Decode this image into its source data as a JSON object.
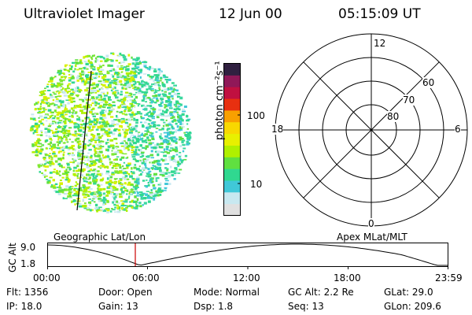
{
  "header": {
    "title": "Ultraviolet Imager",
    "date": "12 Jun 00",
    "time": "05:15:09 UT"
  },
  "colorbar": {
    "label": "photon cm⁻²s⁻¹",
    "ticks": [
      "100",
      "10"
    ],
    "colors": [
      "#e0e0e0",
      "#c8e8f0",
      "#40c8d8",
      "#30d890",
      "#60e040",
      "#b0f000",
      "#e8f000",
      "#f8d800",
      "#f8a000",
      "#e83010",
      "#c01040",
      "#901858",
      "#302040"
    ]
  },
  "polar": {
    "mlt_labels": {
      "top": "12",
      "bottom": "0",
      "left": "18",
      "right": "6"
    },
    "lat_labels": [
      "60",
      "70",
      "80"
    ]
  },
  "timeline": {
    "left_title": "Geographic Lat/Lon",
    "right_title": "Apex MLat/MLT",
    "axis_label": "GC Alt",
    "y_ticks": [
      "9.0",
      "1.8"
    ],
    "x_ticks": [
      "00:00",
      "06:00",
      "12:00",
      "18:00",
      "23:59"
    ],
    "marker_color": "#cc0000"
  },
  "info": {
    "flt": "Flt: 1356",
    "door": "Door: Open",
    "mode": "Mode: Normal",
    "gc_alt": "GC Alt: 2.2 Re",
    "glat": "GLat:  29.0",
    "ip": "IP: 18.0",
    "gain": "Gain: 13",
    "dsp": "Dsp:     1.8",
    "seq": "Seq: 13",
    "glon": "GLon: 209.6"
  }
}
